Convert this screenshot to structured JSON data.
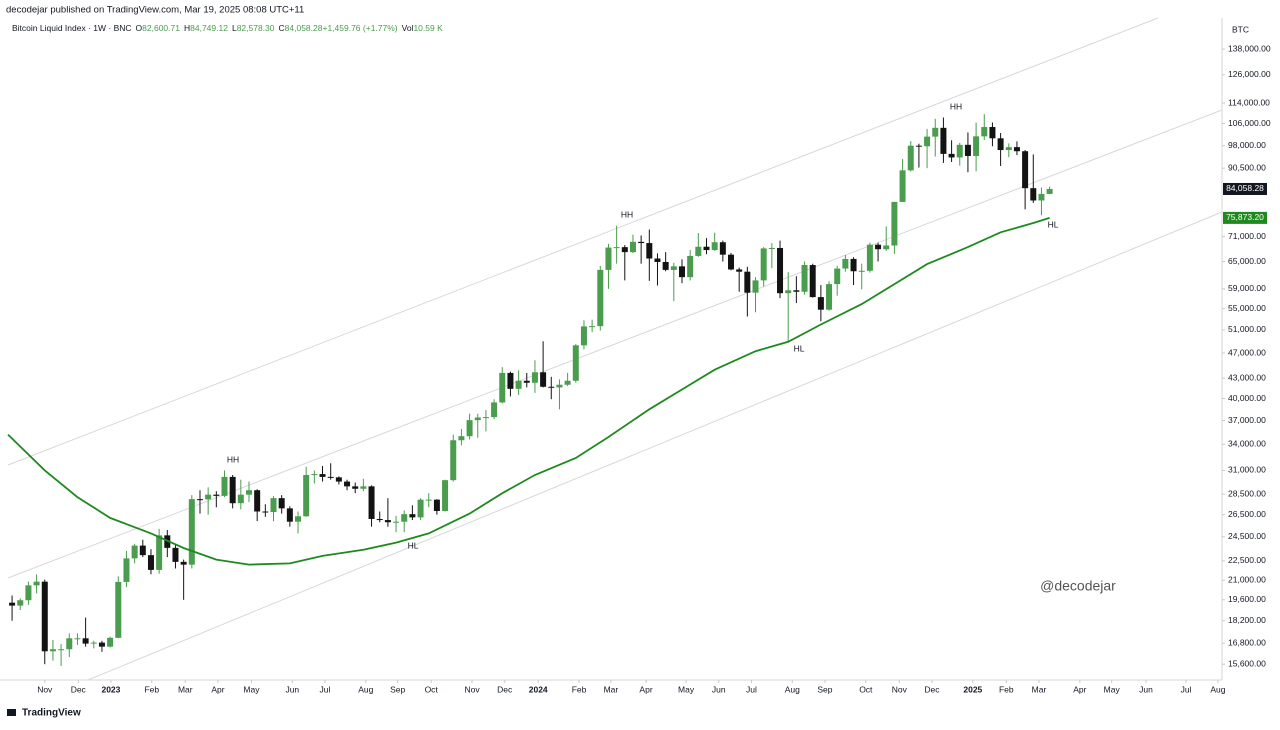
{
  "header": "decodejar published on TradingView.com, Mar 19, 2025 08:08 UTC+11",
  "footer": "TradingView",
  "chart_data": {
    "type": "candlestick",
    "title": "Bitcoin Liquid Index · 1W · BNC",
    "legend": [
      {
        "key": "O",
        "value": "82,600.71"
      },
      {
        "key": "H",
        "value": "84,749.12"
      },
      {
        "key": "L",
        "value": "82,578.30"
      },
      {
        "key": "C",
        "value": "84,058.28"
      },
      {
        "key": "",
        "value": "+1,459.76 (+1.77%)"
      },
      {
        "key": "Vol",
        "value": "10.59 K"
      }
    ],
    "y_axis_label": "BTC",
    "log_scale": true,
    "grid": false,
    "up_color": "#4a9c4e",
    "down_color": "#131313",
    "ma_color": "#1e8a1e",
    "last_price_label": "84,058.28",
    "ma_label": "75,873.20",
    "watermark": "@decodejar",
    "annotations": [
      "HH",
      "HH",
      "HH",
      "HL",
      "HL",
      "HL"
    ],
    "xlim": [
      -0.5,
      148.1
    ],
    "ylim": [
      14750,
      153000
    ],
    "xticks": [
      {
        "value": 4.0,
        "label": "Nov"
      },
      {
        "value": 8.1,
        "label": "Dec"
      },
      {
        "value": 12.1,
        "label": "2023"
      },
      {
        "value": 17.1,
        "label": "Feb"
      },
      {
        "value": 21.2,
        "label": "Mar"
      },
      {
        "value": 25.2,
        "label": "Apr"
      },
      {
        "value": 29.3,
        "label": "May"
      },
      {
        "value": 34.3,
        "label": "Jun"
      },
      {
        "value": 38.3,
        "label": "Jul"
      },
      {
        "value": 43.3,
        "label": "Aug"
      },
      {
        "value": 47.2,
        "label": "Sep"
      },
      {
        "value": 51.3,
        "label": "Oct"
      },
      {
        "value": 56.3,
        "label": "Nov"
      },
      {
        "value": 60.3,
        "label": "Dec"
      },
      {
        "value": 64.4,
        "label": "2024"
      },
      {
        "value": 69.4,
        "label": "Feb"
      },
      {
        "value": 73.3,
        "label": "Mar"
      },
      {
        "value": 77.6,
        "label": "Apr"
      },
      {
        "value": 82.5,
        "label": "May"
      },
      {
        "value": 86.5,
        "label": "Jun"
      },
      {
        "value": 90.5,
        "label": "Jul"
      },
      {
        "value": 95.5,
        "label": "Aug"
      },
      {
        "value": 99.5,
        "label": "Sep"
      },
      {
        "value": 104.5,
        "label": "Oct"
      },
      {
        "value": 108.6,
        "label": "Nov"
      },
      {
        "value": 112.6,
        "label": "Dec"
      },
      {
        "value": 117.6,
        "label": "2025"
      },
      {
        "value": 121.7,
        "label": "Feb"
      },
      {
        "value": 125.7,
        "label": "Mar"
      },
      {
        "value": 130.7,
        "label": "Apr"
      },
      {
        "value": 134.6,
        "label": "May"
      },
      {
        "value": 138.8,
        "label": "Jun"
      },
      {
        "value": 143.7,
        "label": "Jul"
      },
      {
        "value": 147.6,
        "label": "Aug"
      }
    ],
    "yticks": [
      {
        "value": 138000,
        "label": "138,000.00"
      },
      {
        "value": 126000,
        "label": "126,000.00"
      },
      {
        "value": 114000,
        "label": "114,000.00"
      },
      {
        "value": 106000,
        "label": "106,000.00"
      },
      {
        "value": 98000,
        "label": "98,000.00"
      },
      {
        "value": 90500,
        "label": "90,500.00"
      },
      {
        "value": 71000,
        "label": "71,000.00"
      },
      {
        "value": 65000,
        "label": "65,000.00"
      },
      {
        "value": 59000,
        "label": "59,000.00"
      },
      {
        "value": 55000,
        "label": "55,000.00"
      },
      {
        "value": 51000,
        "label": "51,000.00"
      },
      {
        "value": 47000,
        "label": "47,000.00"
      },
      {
        "value": 43000,
        "label": "43,000.00"
      },
      {
        "value": 40000,
        "label": "40,000.00"
      },
      {
        "value": 37000,
        "label": "37,000.00"
      },
      {
        "value": 34000,
        "label": "34,000.00"
      },
      {
        "value": 31000,
        "label": "31,000.00"
      },
      {
        "value": 28500,
        "label": "28,500.00"
      },
      {
        "value": 26500,
        "label": "26,500.00"
      },
      {
        "value": 24500,
        "label": "24,500.00"
      },
      {
        "value": 22500,
        "label": "22,500.00"
      },
      {
        "value": 21000,
        "label": "21,000.00"
      },
      {
        "value": 19600,
        "label": "19,600.00"
      },
      {
        "value": 18200,
        "label": "18,200.00"
      },
      {
        "value": 16800,
        "label": "16,800.00"
      },
      {
        "value": 15600,
        "label": "15,600.00"
      }
    ],
    "candles": [
      [
        19400,
        19900,
        18200,
        19200
      ],
      [
        19200,
        19700,
        18900,
        19570
      ],
      [
        19570,
        20900,
        19250,
        20630
      ],
      [
        20630,
        21450,
        20050,
        20900
      ],
      [
        20900,
        21050,
        15600,
        16330
      ],
      [
        16330,
        17000,
        15800,
        16450
      ],
      [
        16450,
        16750,
        15500,
        16450
      ],
      [
        16450,
        17400,
        16000,
        17100
      ],
      [
        17100,
        17400,
        16700,
        17100
      ],
      [
        17100,
        18400,
        16600,
        16780
      ],
      [
        16780,
        16950,
        16500,
        16840
      ],
      [
        16840,
        16950,
        16300,
        16600
      ],
      [
        16600,
        17200,
        16550,
        17130
      ],
      [
        17130,
        21300,
        17100,
        20880
      ],
      [
        20880,
        23300,
        20500,
        22700
      ],
      [
        22700,
        23900,
        22300,
        23750
      ],
      [
        23750,
        24250,
        22800,
        22960
      ],
      [
        22960,
        23450,
        21450,
        21790
      ],
      [
        21790,
        25200,
        21500,
        24630
      ],
      [
        24630,
        25100,
        22800,
        23560
      ],
      [
        23560,
        23880,
        21900,
        22420
      ],
      [
        22420,
        22600,
        19600,
        22200
      ],
      [
        22200,
        28400,
        21900,
        28000
      ],
      [
        28000,
        28900,
        26600,
        27980
      ],
      [
        27980,
        29200,
        26500,
        28450
      ],
      [
        28450,
        28800,
        27200,
        28330
      ],
      [
        28330,
        31000,
        28200,
        30300
      ],
      [
        30300,
        30500,
        27100,
        27600
      ],
      [
        27600,
        30000,
        27000,
        28450
      ],
      [
        28450,
        29800,
        27700,
        28900
      ],
      [
        28900,
        29000,
        25900,
        26800
      ],
      [
        26800,
        27500,
        26300,
        26750
      ],
      [
        26750,
        28300,
        25900,
        28100
      ],
      [
        28100,
        28400,
        26600,
        27100
      ],
      [
        27100,
        27300,
        25400,
        25850
      ],
      [
        25850,
        26800,
        24800,
        26350
      ],
      [
        26350,
        31400,
        26300,
        30500
      ],
      [
        30500,
        31000,
        29600,
        30600
      ],
      [
        30600,
        31500,
        29800,
        30300
      ],
      [
        30300,
        31800,
        30000,
        30250
      ],
      [
        30250,
        30350,
        29500,
        29800
      ],
      [
        29800,
        30000,
        28900,
        29300
      ],
      [
        29300,
        29700,
        28600,
        29050
      ],
      [
        29050,
        30100,
        28800,
        29300
      ],
      [
        29300,
        29400,
        25400,
        26100
      ],
      [
        26100,
        26800,
        25800,
        26000
      ],
      [
        26000,
        28100,
        25400,
        25800
      ],
      [
        25800,
        26400,
        24900,
        25850
      ],
      [
        25850,
        26900,
        24900,
        26550
      ],
      [
        26550,
        27400,
        26000,
        26250
      ],
      [
        26250,
        28100,
        26000,
        27950
      ],
      [
        27950,
        28600,
        27200,
        27950
      ],
      [
        27950,
        28000,
        26500,
        26850
      ],
      [
        26850,
        30000,
        26800,
        29950
      ],
      [
        29950,
        35200,
        29800,
        34500
      ],
      [
        34500,
        35900,
        33900,
        35000
      ],
      [
        35000,
        37900,
        34600,
        37050
      ],
      [
        37050,
        37900,
        34800,
        37400
      ],
      [
        37400,
        38400,
        35600,
        37450
      ],
      [
        37450,
        39900,
        37200,
        39450
      ],
      [
        39450,
        44700,
        39300,
        43800
      ],
      [
        43800,
        44000,
        40300,
        41400
      ],
      [
        41400,
        44200,
        40500,
        42600
      ],
      [
        42600,
        43800,
        41600,
        42300
      ],
      [
        42300,
        45800,
        40800,
        43900
      ],
      [
        43900,
        49000,
        41600,
        41700
      ],
      [
        41700,
        43200,
        39900,
        41600
      ],
      [
        41600,
        42800,
        38500,
        42000
      ],
      [
        42000,
        43800,
        41800,
        42600
      ],
      [
        42600,
        48500,
        42300,
        48300
      ],
      [
        48300,
        52800,
        47600,
        51650
      ],
      [
        51650,
        52900,
        50600,
        51700
      ],
      [
        51700,
        64000,
        50900,
        63100
      ],
      [
        63100,
        69200,
        59000,
        68300
      ],
      [
        68300,
        73800,
        64500,
        68400
      ],
      [
        68400,
        68900,
        60800,
        67200
      ],
      [
        67200,
        71500,
        67000,
        69700
      ],
      [
        69700,
        71300,
        64500,
        69400
      ],
      [
        69400,
        72800,
        60700,
        65700
      ],
      [
        65700,
        66900,
        59700,
        64900
      ],
      [
        64900,
        67200,
        62800,
        63100
      ],
      [
        63100,
        64700,
        56500,
        63900
      ],
      [
        63900,
        65500,
        60200,
        61500
      ],
      [
        61500,
        67700,
        60800,
        66300
      ],
      [
        66300,
        71900,
        66100,
        68500
      ],
      [
        68500,
        70600,
        66700,
        67700
      ],
      [
        67700,
        72000,
        67500,
        69600
      ],
      [
        69600,
        70000,
        65000,
        66600
      ],
      [
        66600,
        67000,
        63000,
        63200
      ],
      [
        63200,
        63600,
        58400,
        62700
      ],
      [
        62700,
        63800,
        53500,
        58200
      ],
      [
        58200,
        61500,
        54300,
        60800
      ],
      [
        60800,
        68400,
        59500,
        68100
      ],
      [
        68100,
        69400,
        63500,
        68200
      ],
      [
        68200,
        70000,
        57100,
        58100
      ],
      [
        58100,
        62600,
        49000,
        58700
      ],
      [
        58700,
        61700,
        56100,
        58400
      ],
      [
        58400,
        65000,
        57800,
        64200
      ],
      [
        64200,
        64500,
        57200,
        57300
      ],
      [
        57300,
        59800,
        52600,
        54800
      ],
      [
        54800,
        60600,
        54600,
        60000
      ],
      [
        60000,
        64000,
        57600,
        63400
      ],
      [
        63400,
        66500,
        62700,
        65600
      ],
      [
        65600,
        66000,
        59800,
        62800
      ],
      [
        62800,
        64500,
        58900,
        62900
      ],
      [
        62900,
        69500,
        62500,
        69000
      ],
      [
        69000,
        69500,
        65000,
        67900
      ],
      [
        67900,
        73600,
        67500,
        68800
      ],
      [
        68800,
        80300,
        66800,
        80300
      ],
      [
        80300,
        93500,
        80200,
        89800
      ],
      [
        89800,
        99600,
        89400,
        98000
      ],
      [
        98000,
        98700,
        90700,
        97800
      ],
      [
        97800,
        104000,
        90500,
        101200
      ],
      [
        101200,
        107800,
        94300,
        104400
      ],
      [
        104400,
        108300,
        92200,
        95200
      ],
      [
        95200,
        99900,
        92500,
        94000
      ],
      [
        94000,
        99000,
        91300,
        98300
      ],
      [
        98300,
        102700,
        89200,
        94500
      ],
      [
        94500,
        106400,
        89500,
        101300
      ],
      [
        101300,
        109600,
        100000,
        104700
      ],
      [
        104700,
        106400,
        97800,
        100600
      ],
      [
        100600,
        102500,
        91200,
        96500
      ],
      [
        96500,
        98800,
        94100,
        97500
      ],
      [
        97500,
        99500,
        94800,
        96100
      ],
      [
        96100,
        96500,
        78200,
        84300
      ],
      [
        84300,
        95000,
        80000,
        80700
      ],
      [
        80700,
        84500,
        76600,
        82600
      ],
      [
        82600.71,
        84749.12,
        82578.3,
        84058.28
      ]
    ],
    "ma": {
      "x": [
        -0.5,
        4,
        8,
        12,
        17,
        21,
        25,
        29,
        34,
        38,
        43,
        47,
        51,
        56,
        60,
        64,
        69,
        73,
        78,
        82,
        86,
        91,
        95,
        99,
        104,
        108,
        112,
        117,
        121,
        125,
        127
      ],
      "values": [
        35200,
        31000,
        28200,
        26200,
        24800,
        23550,
        22600,
        22200,
        22300,
        22900,
        23400,
        24000,
        24800,
        26600,
        28600,
        30500,
        32400,
        34900,
        38500,
        41300,
        44300,
        47300,
        48900,
        52000,
        55900,
        60000,
        64400,
        68400,
        72100,
        74500,
        75873.2
      ]
    }
  }
}
